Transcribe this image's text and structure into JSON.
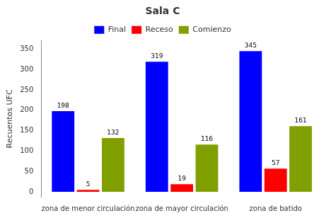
{
  "chart_data": {
    "type": "bar",
    "title": "Sala C",
    "ylabel": "Recuentos UFC",
    "categories": [
      "zona de menor circulación",
      "zona de mayor circulación",
      "zona de batido"
    ],
    "series": [
      {
        "name": "Final",
        "color": "#0000FF",
        "values": [
          198,
          319,
          345
        ]
      },
      {
        "name": "Receso",
        "color": "#FF0000",
        "values": [
          5,
          19,
          57
        ]
      },
      {
        "name": "Comienzo",
        "color": "#80A000",
        "values": [
          132,
          116,
          161
        ]
      }
    ],
    "ylim": [
      -12,
      370
    ],
    "yticks": [
      0,
      50,
      100,
      150,
      200,
      250,
      300,
      350
    ],
    "grid": false,
    "legend": "top",
    "data_labels": true
  }
}
